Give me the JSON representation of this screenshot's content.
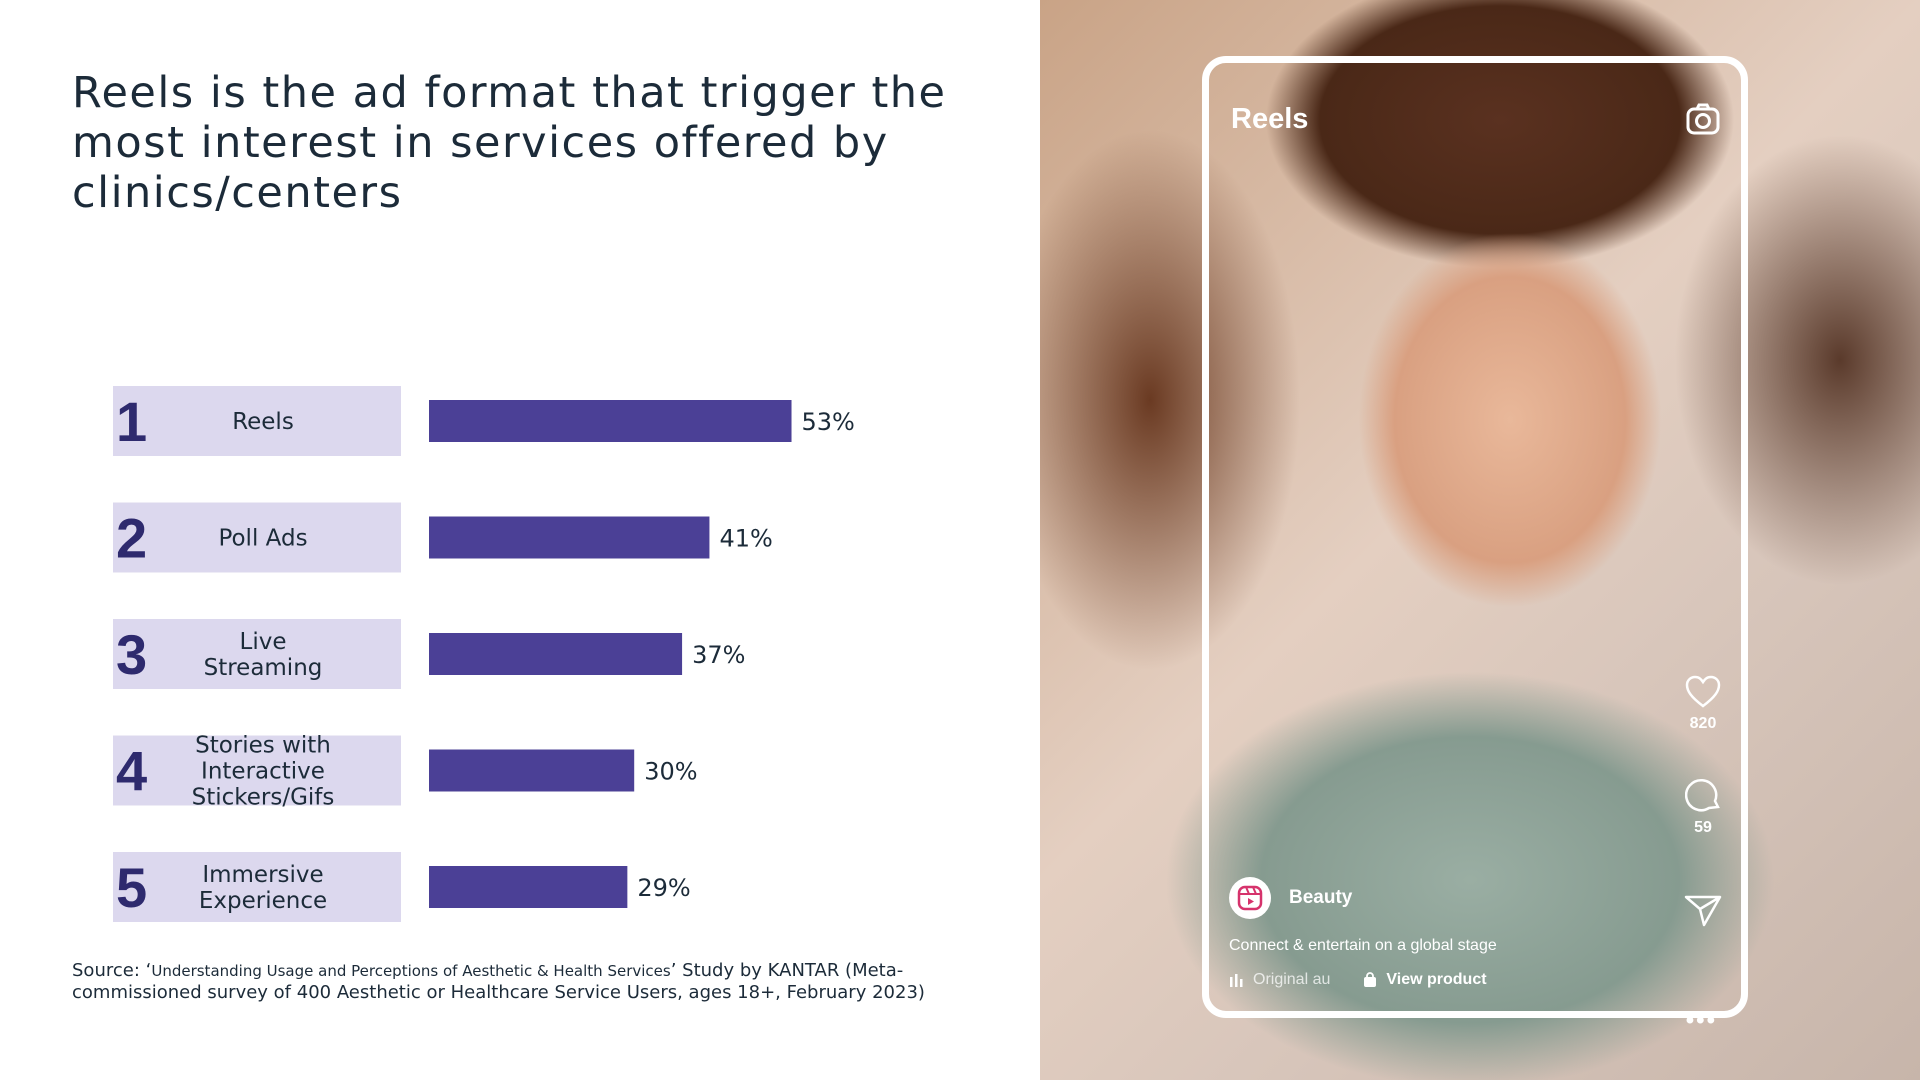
{
  "slide": {
    "title": "Reels is the ad format that trigger the most interest in services offered by clinics/centers",
    "source_lead": "Source: ‘",
    "source_study": "Understanding Usage and Perceptions of Aesthetic & Health Services",
    "source_tail": "’ Study by KANTAR (Meta-commissioned survey of 400 Aesthetic or Healthcare Service Users, ages 18+, February 2023)"
  },
  "chart_data": {
    "type": "bar",
    "orientation": "horizontal",
    "ranks": [
      "1",
      "2",
      "3",
      "4",
      "5"
    ],
    "categories": [
      [
        "Reels"
      ],
      [
        "Poll Ads"
      ],
      [
        "Live",
        "Streaming"
      ],
      [
        "Stories with",
        "Interactive",
        "Stickers/Gifs"
      ],
      [
        "Immersive",
        "Experience"
      ]
    ],
    "values": [
      53,
      41,
      37,
      30,
      29
    ],
    "value_labels": [
      "53%",
      "41%",
      "37%",
      "30%",
      "29%"
    ],
    "xlim": [
      0,
      100
    ],
    "grid": false,
    "colors": {
      "bar": "#4b4096",
      "label_box": "#dcd8ee",
      "rank_text": "#2e2a6e"
    }
  },
  "phone": {
    "title": "Reels",
    "likes": "820",
    "comments": "59",
    "account": "Beauty",
    "caption": "Connect & entertain on a global stage",
    "audio": "Original au",
    "product": "View product",
    "icons": [
      "camera-icon",
      "heart-icon",
      "comment-icon",
      "send-icon",
      "more-icon",
      "audio-icon",
      "shopping-bag-icon"
    ]
  }
}
